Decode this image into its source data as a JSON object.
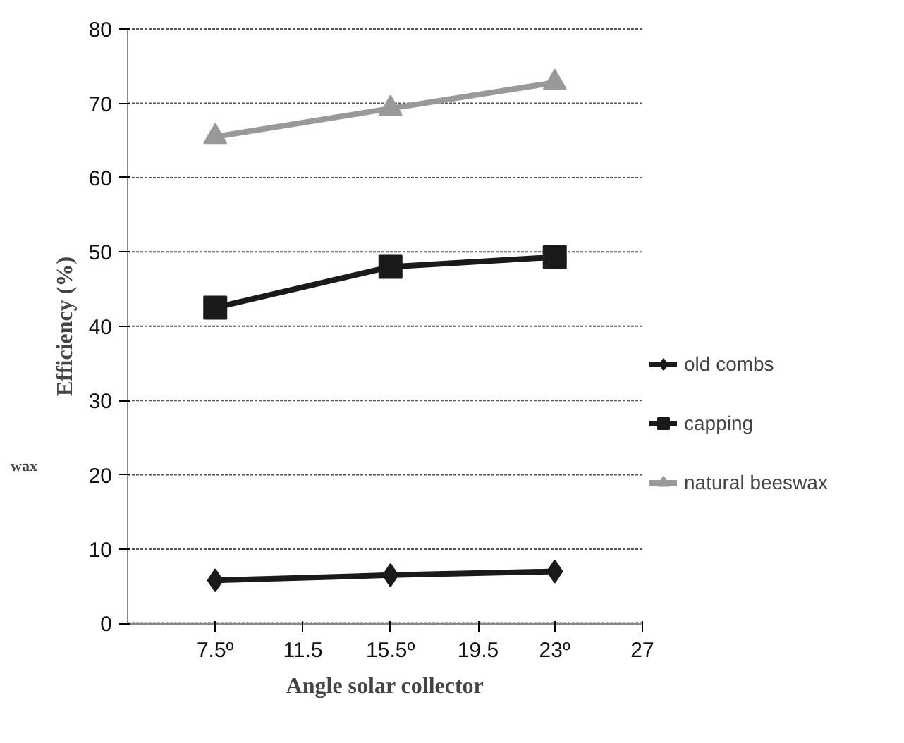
{
  "chart_data": {
    "type": "line",
    "xlabel": "Angle solar collector",
    "ylabel": "Efficiency (%)",
    "x": [
      7.5,
      15.5,
      23
    ],
    "series": [
      {
        "name": "old combs",
        "color": "#1a1a1a",
        "marker": "diamond",
        "values": [
          5.8,
          6.5,
          7.0
        ]
      },
      {
        "name": "capping",
        "color": "#1a1a1a",
        "marker": "square",
        "values": [
          42.5,
          48.0,
          49.3
        ]
      },
      {
        "name": "natural beeswax",
        "color": "#999999",
        "marker": "triangle",
        "values": [
          65.5,
          69.3,
          72.8
        ]
      }
    ],
    "xlim": [
      3.5,
      27
    ],
    "xticks": [
      {
        "value": 7.5,
        "label": "7.5º"
      },
      11.5,
      {
        "value": 15.5,
        "label": "15.5º"
      },
      19.5,
      {
        "value": 23,
        "label": "23º"
      },
      27
    ],
    "ylim": [
      0,
      80
    ],
    "yticks": [
      0,
      10,
      20,
      30,
      40,
      50,
      60,
      70,
      80
    ],
    "grid": "y",
    "legend": "right",
    "line_style": "solid",
    "annotations": [
      "wax"
    ]
  }
}
